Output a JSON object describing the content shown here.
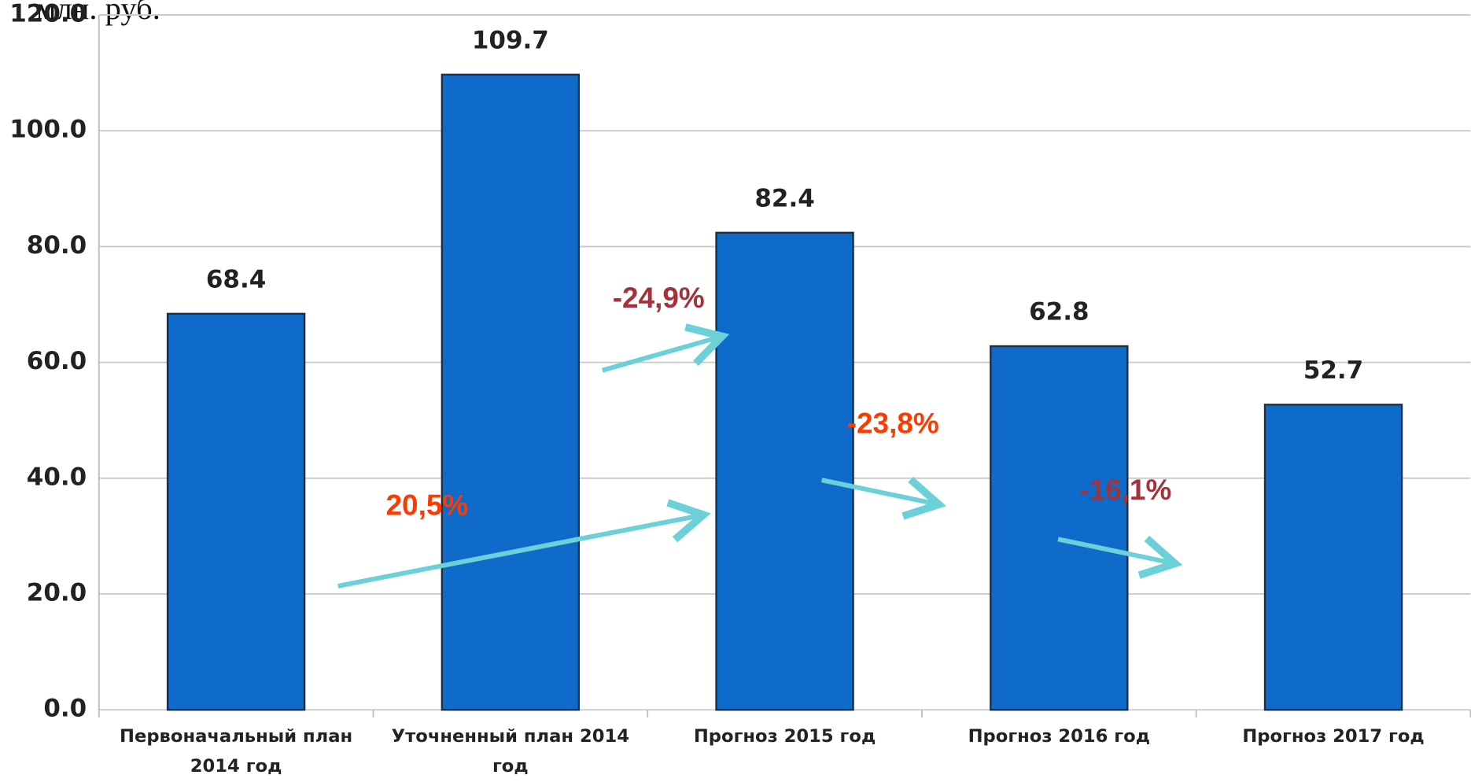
{
  "chart_data": {
    "type": "bar",
    "title": "млн. руб.",
    "categories": [
      "Первоначальный план 2014 год",
      "Уточненный план 2014 год",
      "Прогноз 2015 год",
      "Прогноз 2016 год",
      "Прогноз 2017 год"
    ],
    "values": [
      68.4,
      109.7,
      82.4,
      62.8,
      52.7
    ],
    "color": "#0f6bc9",
    "ylim": [
      0,
      120
    ],
    "yticks": [
      {
        "value": 0,
        "label": "0.0"
      },
      {
        "value": 20,
        "label": "20.0"
      },
      {
        "value": 40,
        "label": "40.0"
      },
      {
        "value": 60,
        "label": "60.0"
      },
      {
        "value": 80,
        "label": "80.0"
      },
      {
        "value": 100,
        "label": "100.0"
      },
      {
        "value": 120,
        "label": "120.0"
      }
    ],
    "grid": true,
    "annotations": [
      {
        "text": "20,5%",
        "color": "#ff3a00"
      },
      {
        "text": "-24,9%",
        "color": "#a3323c"
      },
      {
        "text": "-23,8%",
        "color": "#ff3a00"
      },
      {
        "text": "-16,1%",
        "color": "#a3323c"
      }
    ]
  }
}
